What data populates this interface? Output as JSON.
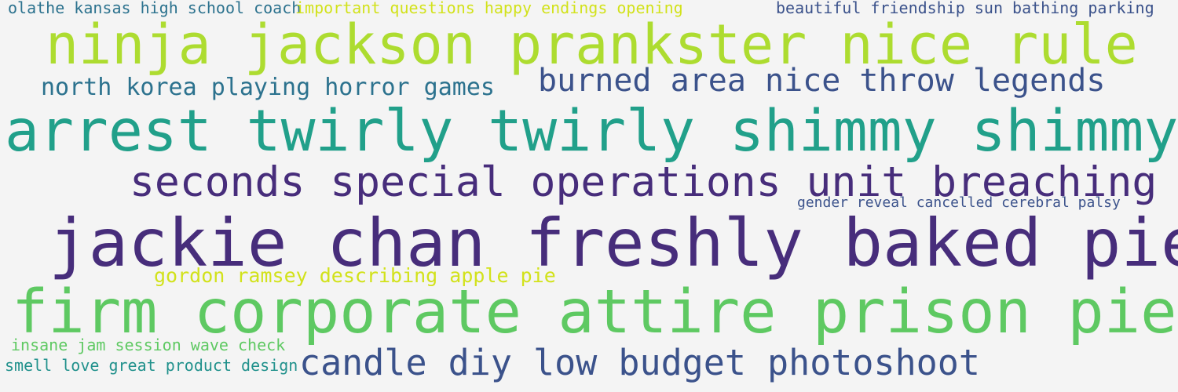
{
  "palette": {
    "background": "#f4f4f4",
    "dark_purple": "#472d7b",
    "indigo": "#3b528b",
    "blue_teal": "#2c728e",
    "teal": "#21918c",
    "green_teal": "#28ae80",
    "green": "#5ec962",
    "lime": "#addc30",
    "yellow": "#d2e21b"
  },
  "phrases": [
    {
      "text": "olathe kansas high school coach",
      "color": "#2c728e"
    },
    {
      "text": "important questions happy endings opening",
      "color": "#d2e21b"
    },
    {
      "text": "beautiful friendship sun bathing parking",
      "color": "#3b528b"
    },
    {
      "text": "ninja jackson prankster nice rule",
      "color": "#addc30"
    },
    {
      "text": "north korea playing horror games",
      "color": "#2c728e"
    },
    {
      "text": "burned area nice throw legends",
      "color": "#3b528b"
    },
    {
      "text": "arrest twirly twirly shimmy shimmy",
      "color": "#21a08a"
    },
    {
      "text": "seconds special operations unit breaching",
      "color": "#472d7b"
    },
    {
      "text": "gender reveal cancelled cerebral palsy",
      "color": "#3b528b"
    },
    {
      "text": "jackie chan freshly baked pie",
      "color": "#472d7b"
    },
    {
      "text": "gordon ramsey describing apple pie",
      "color": "#d2e21b"
    },
    {
      "text": "firm corporate attire prison pie",
      "color": "#5ec962"
    },
    {
      "text": "insane jam session wave check",
      "color": "#5ec962"
    },
    {
      "text": "smell love great product design",
      "color": "#21918c"
    },
    {
      "text": "candle diy low budget photoshoot",
      "color": "#3b528b"
    }
  ]
}
